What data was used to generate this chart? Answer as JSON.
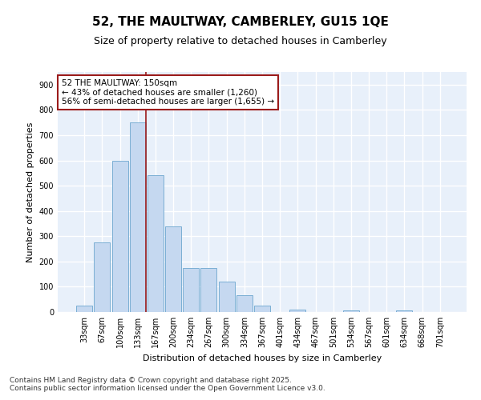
{
  "title_line1": "52, THE MAULTWAY, CAMBERLEY, GU15 1QE",
  "title_line2": "Size of property relative to detached houses in Camberley",
  "xlabel": "Distribution of detached houses by size in Camberley",
  "ylabel": "Number of detached properties",
  "categories": [
    "33sqm",
    "67sqm",
    "100sqm",
    "133sqm",
    "167sqm",
    "200sqm",
    "234sqm",
    "267sqm",
    "300sqm",
    "334sqm",
    "367sqm",
    "401sqm",
    "434sqm",
    "467sqm",
    "501sqm",
    "534sqm",
    "567sqm",
    "601sqm",
    "634sqm",
    "668sqm",
    "701sqm"
  ],
  "values": [
    25,
    275,
    600,
    750,
    540,
    340,
    175,
    175,
    120,
    65,
    25,
    0,
    10,
    0,
    0,
    5,
    0,
    0,
    5,
    0,
    0
  ],
  "bar_color": "#C5D8F0",
  "bar_edge_color": "#7BAFD4",
  "bg_color": "#E8F0FA",
  "grid_color": "#FFFFFF",
  "vline_x_index": 3,
  "vline_color": "#9B1B1B",
  "annotation_text_line1": "52 THE MAULTWAY: 150sqm",
  "annotation_text_line2": "← 43% of detached houses are smaller (1,260)",
  "annotation_text_line3": "56% of semi-detached houses are larger (1,655) →",
  "annotation_box_color": "#9B1B1B",
  "ylim": [
    0,
    950
  ],
  "yticks": [
    0,
    100,
    200,
    300,
    400,
    500,
    600,
    700,
    800,
    900
  ],
  "footer_line1": "Contains HM Land Registry data © Crown copyright and database right 2025.",
  "footer_line2": "Contains public sector information licensed under the Open Government Licence v3.0.",
  "title_fontsize": 11,
  "subtitle_fontsize": 9,
  "axis_label_fontsize": 8,
  "tick_fontsize": 7,
  "annotation_fontsize": 7.5,
  "footer_fontsize": 6.5
}
